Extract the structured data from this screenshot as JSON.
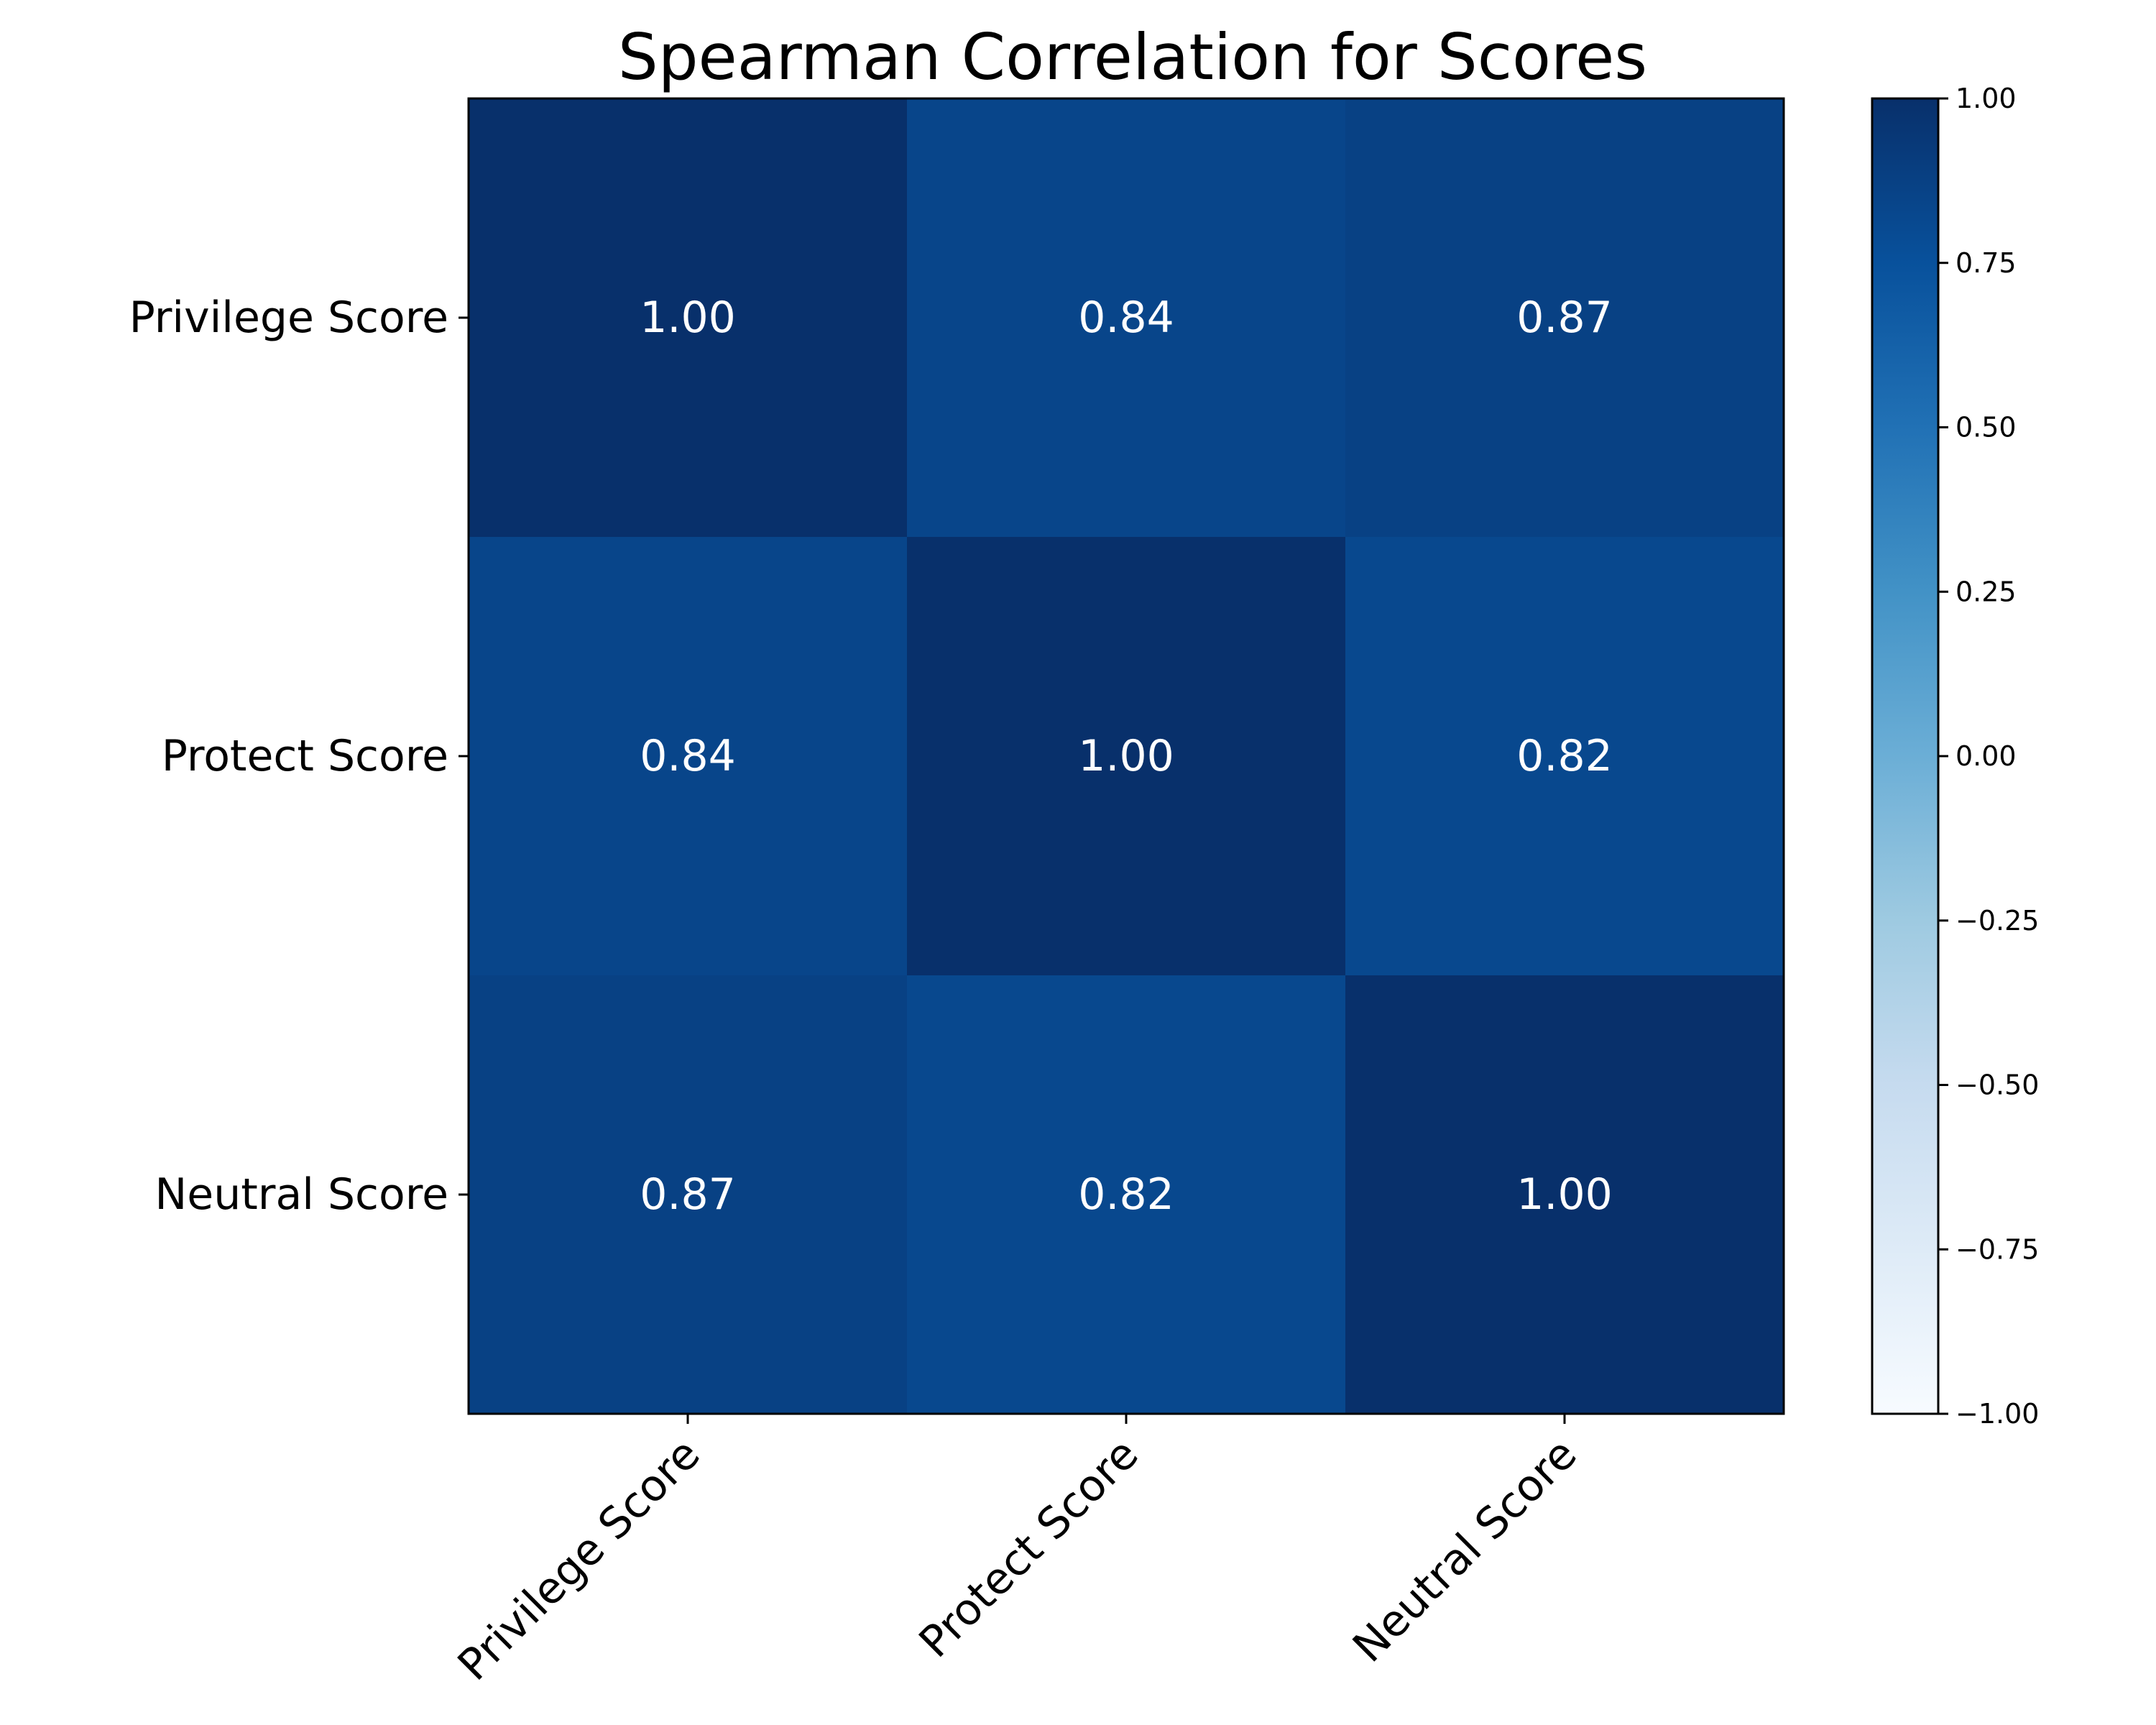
{
  "chart_data": {
    "type": "heatmap",
    "title": "Spearman Correlation for Scores",
    "row_labels": [
      "Privilege Score",
      "Protect Score",
      "Neutral Score"
    ],
    "col_labels": [
      "Privilege Score",
      "Protect Score",
      "Neutral Score"
    ],
    "values": [
      [
        1.0,
        0.84,
        0.87
      ],
      [
        0.84,
        1.0,
        0.82
      ],
      [
        0.87,
        0.82,
        1.0
      ]
    ],
    "cell_labels": [
      [
        "1.00",
        "0.84",
        "0.87"
      ],
      [
        "0.84",
        "1.00",
        "0.82"
      ],
      [
        "0.87",
        "0.82",
        "1.00"
      ]
    ],
    "colorbar": {
      "vmin": -1.0,
      "vmax": 1.0,
      "ticks": [
        1.0,
        0.75,
        0.5,
        0.25,
        0.0,
        -0.25,
        -0.5,
        -0.75,
        -1.0
      ],
      "tick_labels": [
        "1.00",
        "0.75",
        "0.50",
        "0.25",
        "0.00",
        "−0.25",
        "−0.50",
        "−0.75",
        "−1.00"
      ]
    },
    "colormap": [
      "#f7fbff",
      "#deebf7",
      "#c6dbef",
      "#9ecae1",
      "#6baed6",
      "#4292c6",
      "#2171b5",
      "#08519c",
      "#08306b"
    ],
    "grid": false
  }
}
